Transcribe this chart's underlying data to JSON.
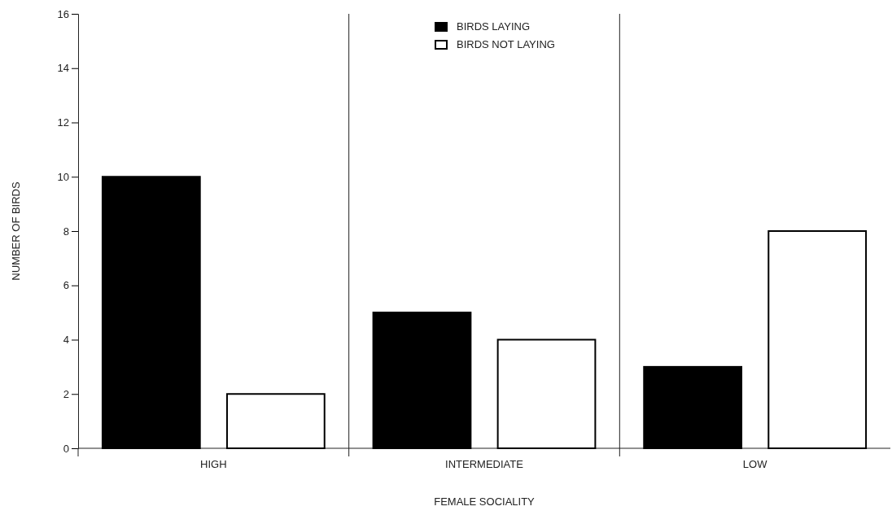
{
  "chart_data": {
    "type": "bar",
    "xlabel": "FEMALE SOCIALITY",
    "ylabel": "NUMBER OF BIRDS",
    "categories": [
      "HIGH",
      "INTERMEDIATE",
      "LOW"
    ],
    "series": [
      {
        "name": "BIRDS LAYING",
        "color": "#000000",
        "values": [
          10,
          5,
          3
        ]
      },
      {
        "name": "BIRDS NOT LAYING",
        "color": "#ffffff",
        "values": [
          2,
          4,
          8
        ]
      }
    ],
    "ylim": [
      0,
      16
    ],
    "yticks": [
      0,
      2,
      4,
      6,
      8,
      10,
      12,
      14,
      16
    ],
    "grid": "x",
    "legend": "top"
  }
}
